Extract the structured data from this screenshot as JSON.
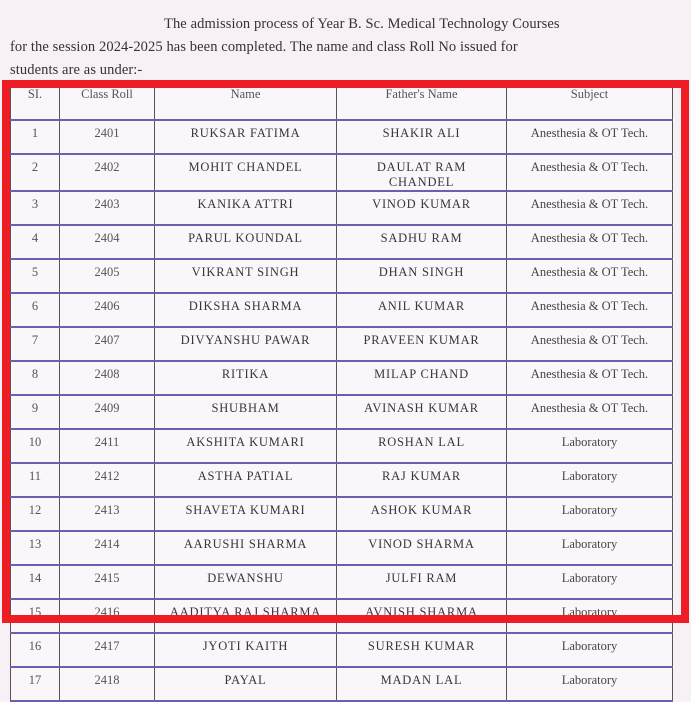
{
  "intro": {
    "line1": "The admission process of Year B. Sc. Medical Technology Courses",
    "line2": "for the session 2024-2025 has been completed. The name and class Roll No issued for",
    "line3": "students are as under:-"
  },
  "highlight_color": "#ee1c24",
  "table": {
    "headers": [
      "SI.",
      "Class Roll",
      "Name",
      "Father's Name",
      "Subject"
    ],
    "rows": [
      {
        "sl": "1",
        "roll": "2401",
        "name": "RUKSAR FATIMA",
        "father": "SHAKIR ALI",
        "subject": "Anesthesia & OT Tech."
      },
      {
        "sl": "2",
        "roll": "2402",
        "name": "MOHIT CHANDEL",
        "father": "DAULAT RAM CHANDEL",
        "subject": "Anesthesia & OT Tech."
      },
      {
        "sl": "3",
        "roll": "2403",
        "name": "KANIKA ATTRI",
        "father": "VINOD KUMAR",
        "subject": "Anesthesia & OT Tech."
      },
      {
        "sl": "4",
        "roll": "2404",
        "name": "PARUL KOUNDAL",
        "father": "SADHU RAM",
        "subject": "Anesthesia & OT Tech."
      },
      {
        "sl": "5",
        "roll": "2405",
        "name": "VIKRANT SINGH",
        "father": "DHAN SINGH",
        "subject": "Anesthesia & OT Tech."
      },
      {
        "sl": "6",
        "roll": "2406",
        "name": "DIKSHA SHARMA",
        "father": "ANIL KUMAR",
        "subject": "Anesthesia & OT Tech."
      },
      {
        "sl": "7",
        "roll": "2407",
        "name": "DIVYANSHU PAWAR",
        "father": "PRAVEEN KUMAR",
        "subject": "Anesthesia & OT Tech."
      },
      {
        "sl": "8",
        "roll": "2408",
        "name": "RITIKA",
        "father": "MILAP CHAND",
        "subject": "Anesthesia & OT Tech."
      },
      {
        "sl": "9",
        "roll": "2409",
        "name": "SHUBHAM",
        "father": "AVINASH KUMAR",
        "subject": "Anesthesia & OT Tech."
      },
      {
        "sl": "10",
        "roll": "2411",
        "name": "AKSHITA KUMARI",
        "father": "ROSHAN LAL",
        "subject": "Laboratory"
      },
      {
        "sl": "11",
        "roll": "2412",
        "name": "ASTHA PATIAL",
        "father": "RAJ KUMAR",
        "subject": "Laboratory"
      },
      {
        "sl": "12",
        "roll": "2413",
        "name": "SHAVETA KUMARI",
        "father": "ASHOK KUMAR",
        "subject": "Laboratory"
      },
      {
        "sl": "13",
        "roll": "2414",
        "name": "AARUSHI SHARMA",
        "father": "VINOD SHARMA",
        "subject": "Laboratory"
      },
      {
        "sl": "14",
        "roll": "2415",
        "name": "DEWANSHU",
        "father": "JULFI RAM",
        "subject": "Laboratory"
      },
      {
        "sl": "15",
        "roll": "2416",
        "name": "AADITYA RAJ SHARMA",
        "father": "AVNISH SHARMA",
        "subject": "Laboratory"
      },
      {
        "sl": "16",
        "roll": "2417",
        "name": "JYOTI KAITH",
        "father": "SURESH KUMAR",
        "subject": "Laboratory"
      },
      {
        "sl": "17",
        "roll": "2418",
        "name": "PAYAL",
        "father": "MADAN LAL",
        "subject": "Laboratory"
      }
    ]
  }
}
